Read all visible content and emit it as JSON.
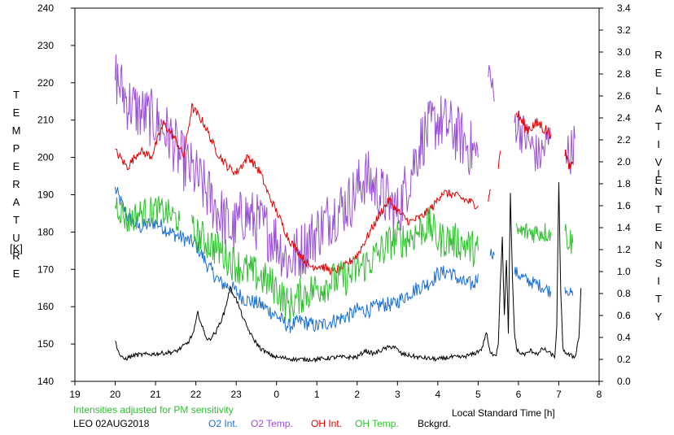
{
  "chart_data": {
    "type": "line",
    "left_axis_label_letters": [
      "T",
      "E",
      "M",
      "P",
      "E",
      "R",
      "A",
      "T",
      "U",
      "R",
      "E"
    ],
    "left_axis_unit": "[K]",
    "right_axis_label_letters_1": [
      "R",
      "E",
      "L",
      "A",
      "T",
      "I",
      "V",
      "E"
    ],
    "right_axis_label_letters_2": [
      "I",
      "N",
      "T",
      "E",
      "N",
      "S",
      "I",
      "T",
      "Y"
    ],
    "xlabel": "Local Standard Time [h]",
    "note": "Intensities adjusted for PM sensitivity",
    "station_date": "LEO 02AUG2018",
    "xlim": [
      19,
      32
    ],
    "ylim_left": [
      140,
      240
    ],
    "ylim_right": [
      0.0,
      3.4
    ],
    "x_ticks": [
      "19",
      "20",
      "21",
      "22",
      "23",
      "0",
      "1",
      "2",
      "3",
      "4",
      "5",
      "6",
      "7",
      "8"
    ],
    "y_ticks_left": [
      "140",
      "150",
      "160",
      "170",
      "180",
      "190",
      "200",
      "210",
      "220",
      "230",
      "240"
    ],
    "y_ticks_right": [
      "0.0",
      "0.2",
      "0.4",
      "0.6",
      "0.8",
      "1.0",
      "1.2",
      "1.4",
      "1.6",
      "1.8",
      "2.0",
      "2.2",
      "2.4",
      "2.6",
      "2.8",
      "3.0",
      "3.2",
      "3.4"
    ],
    "colors": {
      "o2_int": "#1a6fd4",
      "o2_temp": "#9a4fd6",
      "oh_int": "#e00000",
      "oh_temp": "#2fbf2f",
      "bckgrd": "#000000",
      "note": "#2fbf2f"
    },
    "series": [
      {
        "name": "O2 Int.",
        "axis": "right",
        "color": "#1a6fd4",
        "noise": 0.07,
        "pts": [
          [
            20.0,
            1.75
          ],
          [
            20.3,
            1.5
          ],
          [
            20.6,
            1.4
          ],
          [
            21.0,
            1.45
          ],
          [
            21.4,
            1.35
          ],
          [
            21.7,
            1.3
          ],
          [
            22.0,
            1.25
          ],
          [
            22.3,
            1.05
          ],
          [
            22.6,
            0.9
          ],
          [
            22.9,
            0.85
          ],
          [
            23.2,
            0.75
          ],
          [
            23.6,
            0.7
          ],
          [
            24.0,
            0.6
          ],
          [
            24.3,
            0.5
          ],
          [
            24.6,
            0.55
          ],
          [
            25.0,
            0.5
          ],
          [
            25.4,
            0.55
          ],
          [
            25.8,
            0.6
          ],
          [
            26.0,
            0.65
          ],
          [
            26.3,
            0.65
          ],
          [
            26.6,
            0.7
          ],
          [
            26.9,
            0.7
          ],
          [
            27.2,
            0.78
          ],
          [
            27.5,
            0.85
          ],
          [
            27.8,
            0.9
          ],
          [
            28.0,
            0.98
          ],
          [
            28.3,
            1.0
          ],
          [
            28.6,
            0.9
          ],
          [
            28.9,
            0.88
          ],
          [
            29.0,
            0.98
          ]
        ]
      },
      {
        "name": "O2 Int.",
        "axis": "right",
        "color": "#1a6fd4",
        "noise": 0.05,
        "pts": [
          [
            29.3,
            1.18
          ],
          [
            29.4,
            1.15
          ]
        ]
      },
      {
        "name": "O2 Int.",
        "axis": "right",
        "color": "#1a6fd4",
        "noise": 0.06,
        "pts": [
          [
            29.9,
            1.0
          ],
          [
            30.2,
            0.92
          ],
          [
            30.5,
            0.88
          ],
          [
            30.8,
            0.82
          ]
        ]
      },
      {
        "name": "O2 Int.",
        "axis": "right",
        "color": "#1a6fd4",
        "noise": 0.05,
        "pts": [
          [
            31.15,
            0.85
          ],
          [
            31.25,
            0.82
          ],
          [
            31.35,
            0.78
          ]
        ]
      },
      {
        "name": "O2 Temp.",
        "axis": "left",
        "color": "#9a4fd6",
        "noise": 8,
        "pts": [
          [
            20.0,
            222
          ],
          [
            20.3,
            215
          ],
          [
            20.6,
            212
          ],
          [
            21.0,
            210
          ],
          [
            21.4,
            205
          ],
          [
            21.6,
            200
          ],
          [
            22.0,
            195
          ],
          [
            22.3,
            190
          ],
          [
            22.6,
            185
          ],
          [
            22.9,
            180
          ],
          [
            23.2,
            185
          ],
          [
            23.6,
            182
          ],
          [
            24.0,
            178
          ],
          [
            24.3,
            172
          ],
          [
            24.6,
            175
          ],
          [
            25.0,
            180
          ],
          [
            25.4,
            185
          ],
          [
            25.8,
            188
          ],
          [
            26.2,
            195
          ],
          [
            26.6,
            190
          ],
          [
            27.0,
            185
          ],
          [
            27.3,
            195
          ],
          [
            27.6,
            205
          ],
          [
            28.0,
            210
          ],
          [
            28.3,
            208
          ],
          [
            28.6,
            205
          ],
          [
            29.0,
            200
          ]
        ]
      },
      {
        "name": "O2 Temp.",
        "axis": "left",
        "color": "#9a4fd6",
        "noise": 4,
        "pts": [
          [
            29.25,
            225
          ],
          [
            29.4,
            215
          ]
        ]
      },
      {
        "name": "O2 Temp.",
        "axis": "left",
        "color": "#9a4fd6",
        "noise": 6,
        "pts": [
          [
            29.9,
            210
          ],
          [
            30.2,
            205
          ],
          [
            30.5,
            200
          ],
          [
            30.8,
            205
          ]
        ]
      },
      {
        "name": "O2 Temp.",
        "axis": "left",
        "color": "#9a4fd6",
        "noise": 6,
        "pts": [
          [
            31.15,
            205
          ],
          [
            31.25,
            200
          ],
          [
            31.4,
            205
          ]
        ]
      },
      {
        "name": "OH Int.",
        "axis": "right",
        "color": "#e00000",
        "noise": 0.04,
        "pts": [
          [
            20.0,
            2.1
          ],
          [
            20.3,
            1.95
          ],
          [
            20.6,
            2.1
          ],
          [
            20.9,
            2.05
          ],
          [
            21.2,
            2.35
          ],
          [
            21.5,
            2.2
          ],
          [
            21.7,
            2.05
          ],
          [
            21.9,
            2.5
          ],
          [
            22.2,
            2.35
          ],
          [
            22.5,
            2.1
          ],
          [
            22.8,
            1.95
          ],
          [
            23.0,
            1.9
          ],
          [
            23.3,
            2.05
          ],
          [
            23.6,
            1.9
          ],
          [
            23.8,
            1.7
          ],
          [
            24.0,
            1.55
          ],
          [
            24.3,
            1.3
          ],
          [
            24.6,
            1.15
          ],
          [
            24.8,
            1.05
          ],
          [
            25.1,
            1.05
          ],
          [
            25.4,
            1.0
          ],
          [
            25.7,
            1.05
          ],
          [
            26.0,
            1.15
          ],
          [
            26.3,
            1.35
          ],
          [
            26.6,
            1.55
          ],
          [
            26.8,
            1.65
          ],
          [
            27.0,
            1.55
          ],
          [
            27.3,
            1.45
          ],
          [
            27.6,
            1.5
          ],
          [
            27.9,
            1.6
          ],
          [
            28.1,
            1.72
          ],
          [
            28.4,
            1.7
          ],
          [
            28.7,
            1.65
          ],
          [
            29.0,
            1.6
          ]
        ]
      },
      {
        "name": "OH Int.",
        "axis": "right",
        "color": "#e00000",
        "noise": 0.03,
        "pts": [
          [
            29.25,
            1.65
          ],
          [
            29.3,
            1.75
          ]
        ]
      },
      {
        "name": "OH Int.",
        "axis": "right",
        "color": "#e00000",
        "noise": 0.02,
        "pts": [
          [
            29.5,
            1.95
          ],
          [
            29.55,
            2.1
          ]
        ]
      },
      {
        "name": "OH Int.",
        "axis": "right",
        "color": "#e00000",
        "noise": 0.06,
        "pts": [
          [
            29.95,
            2.45
          ],
          [
            30.2,
            2.3
          ],
          [
            30.5,
            2.35
          ],
          [
            30.8,
            2.25
          ]
        ]
      },
      {
        "name": "OH Int.",
        "axis": "right",
        "color": "#e00000",
        "noise": 0.05,
        "pts": [
          [
            31.15,
            2.1
          ],
          [
            31.25,
            1.95
          ],
          [
            31.35,
            2.0
          ]
        ]
      },
      {
        "name": "OH Temp.",
        "axis": "left",
        "color": "#2fbf2f",
        "noise": 4,
        "pts": [
          [
            20.0,
            188
          ],
          [
            20.3,
            183
          ],
          [
            20.6,
            185
          ],
          [
            21.0,
            186
          ],
          [
            21.3,
            185
          ],
          [
            21.6,
            183
          ]
        ]
      },
      {
        "name": "OH Temp.",
        "axis": "left",
        "color": "#2fbf2f",
        "noise": 5,
        "pts": [
          [
            21.9,
            180
          ],
          [
            22.2,
            178
          ],
          [
            22.6,
            175
          ],
          [
            22.9,
            172
          ],
          [
            23.2,
            170
          ],
          [
            23.6,
            168
          ],
          [
            24.0,
            165
          ],
          [
            24.3,
            160
          ],
          [
            24.6,
            163
          ],
          [
            25.0,
            165
          ],
          [
            25.4,
            167
          ],
          [
            25.8,
            168
          ],
          [
            26.0,
            170
          ],
          [
            26.3,
            172
          ],
          [
            26.6,
            175
          ],
          [
            26.9,
            178
          ],
          [
            27.2,
            178
          ],
          [
            27.5,
            180
          ],
          [
            27.8,
            182
          ],
          [
            28.0,
            178
          ],
          [
            28.3,
            178
          ],
          [
            28.6,
            177
          ],
          [
            29.0,
            175
          ]
        ]
      },
      {
        "name": "OH Temp.",
        "axis": "left",
        "color": "#2fbf2f",
        "noise": 3,
        "pts": [
          [
            29.95,
            180
          ],
          [
            30.2,
            180
          ],
          [
            30.5,
            180
          ],
          [
            30.8,
            180
          ]
        ]
      },
      {
        "name": "OH Temp.",
        "axis": "left",
        "color": "#2fbf2f",
        "noise": 4,
        "pts": [
          [
            31.15,
            180
          ],
          [
            31.25,
            178
          ],
          [
            31.35,
            177
          ]
        ]
      },
      {
        "name": "Bckgrd.",
        "axis": "right",
        "color": "#000000",
        "noise": 0.02,
        "pts": [
          [
            20.0,
            0.37
          ],
          [
            20.1,
            0.25
          ],
          [
            20.2,
            0.2
          ],
          [
            20.5,
            0.24
          ],
          [
            21.0,
            0.25
          ],
          [
            21.5,
            0.27
          ],
          [
            21.8,
            0.35
          ],
          [
            21.95,
            0.45
          ],
          [
            22.05,
            0.63
          ],
          [
            22.15,
            0.5
          ],
          [
            22.3,
            0.37
          ],
          [
            22.5,
            0.45
          ],
          [
            22.7,
            0.62
          ],
          [
            22.85,
            0.85
          ],
          [
            23.0,
            0.75
          ],
          [
            23.2,
            0.55
          ],
          [
            23.4,
            0.4
          ],
          [
            23.6,
            0.3
          ],
          [
            23.8,
            0.25
          ],
          [
            24.0,
            0.22
          ],
          [
            24.5,
            0.2
          ],
          [
            25.0,
            0.2
          ],
          [
            25.5,
            0.22
          ],
          [
            26.0,
            0.22
          ],
          [
            26.2,
            0.28
          ],
          [
            26.4,
            0.25
          ],
          [
            26.7,
            0.3
          ],
          [
            26.9,
            0.32
          ],
          [
            27.1,
            0.25
          ],
          [
            27.5,
            0.22
          ],
          [
            28.0,
            0.2
          ],
          [
            28.3,
            0.22
          ],
          [
            28.6,
            0.22
          ],
          [
            28.9,
            0.25
          ],
          [
            29.1,
            0.3
          ],
          [
            29.2,
            0.45
          ],
          [
            29.3,
            0.25
          ],
          [
            29.45,
            0.25
          ],
          [
            29.5,
            0.35
          ],
          [
            29.55,
            0.9
          ],
          [
            29.6,
            1.3
          ],
          [
            29.65,
            0.6
          ],
          [
            29.7,
            1.1
          ],
          [
            29.75,
            0.45
          ],
          [
            29.8,
            1.7
          ],
          [
            29.85,
            0.95
          ],
          [
            29.9,
            0.45
          ],
          [
            29.95,
            0.3
          ],
          [
            30.05,
            0.25
          ],
          [
            30.2,
            0.25
          ],
          [
            30.3,
            0.28
          ],
          [
            30.5,
            0.25
          ],
          [
            30.6,
            0.3
          ],
          [
            30.8,
            0.25
          ],
          [
            30.9,
            0.22
          ],
          [
            30.95,
            0.5
          ],
          [
            31.0,
            1.8
          ],
          [
            31.05,
            0.8
          ],
          [
            31.1,
            0.3
          ],
          [
            31.2,
            0.25
          ],
          [
            31.4,
            0.22
          ],
          [
            31.5,
            0.4
          ],
          [
            31.55,
            0.85
          ]
        ]
      }
    ],
    "legend": [
      {
        "label": "O2 Int.",
        "color": "#1a6fd4"
      },
      {
        "label": "O2 Temp.",
        "color": "#9a4fd6"
      },
      {
        "label": "OH Int.",
        "color": "#e00000"
      },
      {
        "label": "OH Temp.",
        "color": "#2fbf2f"
      },
      {
        "label": "Bckgrd.",
        "color": "#000000"
      }
    ]
  }
}
